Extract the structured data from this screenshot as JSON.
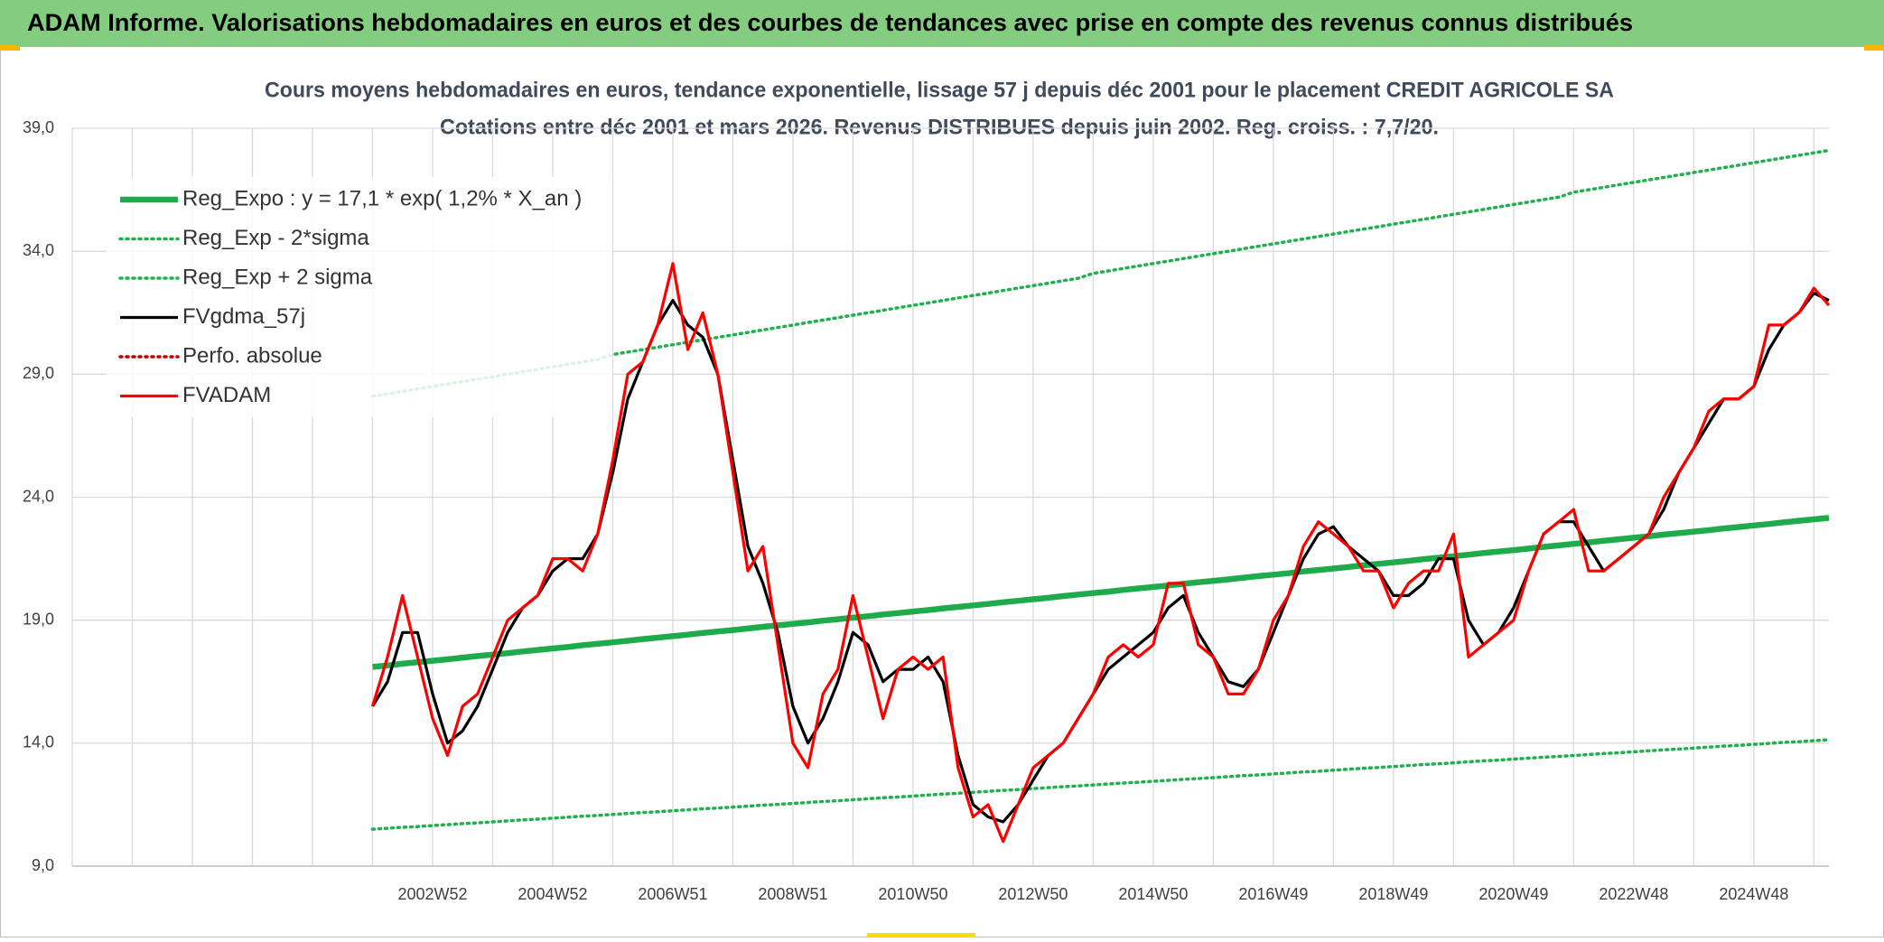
{
  "header": {
    "title": "ADAM Informe. Valorisations hebdomadaires en euros et des courbes de tendances avec prise en compte des revenus connus distribués"
  },
  "chart_data": {
    "type": "line",
    "title": "Cours moyens hebdomadaires en euros, tendance exponentielle, lissage 57 j depuis déc 2001 pour le placement CREDIT AGRICOLE SA",
    "subtitle": "Cotations entre déc 2001 et mars 2026. Revenus DISTRIBUES depuis juin 2002. Reg. croiss. : 7,7/20.",
    "categories": [
      null,
      null,
      null,
      null,
      null,
      null,
      null,
      null,
      null,
      null,
      null,
      null,
      null,
      null,
      null,
      null,
      null,
      null,
      null,
      null,
      null,
      null,
      null,
      null,
      "2002W52",
      null,
      null,
      null,
      null,
      null,
      null,
      null,
      "2004W52",
      null,
      null,
      null,
      null,
      null,
      null,
      null,
      "2006W51",
      null,
      null,
      null,
      null,
      null,
      null,
      null,
      "2008W51",
      null,
      null,
      null,
      null,
      null,
      null,
      null,
      "2010W50",
      null,
      null,
      null,
      null,
      null,
      null,
      null,
      "2012W50",
      null,
      null,
      null,
      null,
      null,
      null,
      null,
      "2014W50",
      null,
      null,
      null,
      null,
      null,
      null,
      null,
      "2016W49",
      null,
      null,
      null,
      null,
      null,
      null,
      null,
      "2018W49",
      null,
      null,
      null,
      null,
      null,
      null,
      null,
      "2020W49",
      null,
      null,
      null,
      null,
      null,
      null,
      null,
      "2022W48",
      null,
      null,
      null,
      null,
      null,
      null,
      null,
      "2024W48",
      null,
      null,
      null,
      null,
      null
    ],
    "ylim": [
      9,
      39
    ],
    "yticks": [
      {
        "value": 9,
        "label": "9,0"
      },
      {
        "value": 14,
        "label": "14,0"
      },
      {
        "value": 19,
        "label": "19,0"
      },
      {
        "value": 24,
        "label": "24,0"
      },
      {
        "value": 29,
        "label": "29,0"
      },
      {
        "value": 34,
        "label": "34,0"
      },
      {
        "value": 39,
        "label": "39,0"
      }
    ],
    "grid": true,
    "legend": "upper left",
    "series": [
      {
        "name": "Reg_Expo : y = 17,1 * exp( 1,2% *  X_an )",
        "color": "#1faa4b",
        "style": "thick",
        "values": [
          null,
          null,
          null,
          null,
          null,
          null,
          null,
          null,
          null,
          null,
          null,
          null,
          null,
          null,
          null,
          null,
          null,
          null,
          null,
          null,
          17.1,
          17.16,
          17.23,
          17.29,
          17.35,
          17.41,
          17.48,
          17.54,
          17.6,
          17.66,
          17.73,
          17.79,
          17.85,
          17.91,
          17.98,
          18.04,
          18.1,
          18.16,
          18.23,
          18.29,
          18.35,
          18.41,
          18.48,
          18.54,
          18.6,
          18.66,
          18.73,
          18.79,
          18.85,
          18.91,
          18.98,
          19.04,
          19.1,
          19.16,
          19.23,
          19.29,
          19.35,
          19.41,
          19.48,
          19.54,
          19.6,
          19.66,
          19.73,
          19.79,
          19.85,
          19.91,
          19.98,
          20.04,
          20.1,
          20.16,
          20.23,
          20.29,
          20.35,
          20.41,
          20.48,
          20.54,
          20.6,
          20.66,
          20.73,
          20.79,
          20.85,
          20.91,
          20.98,
          21.04,
          21.1,
          21.16,
          21.23,
          21.29,
          21.35,
          21.41,
          21.48,
          21.54,
          21.6,
          21.66,
          21.73,
          21.79,
          21.85,
          21.91,
          21.98,
          22.04,
          22.1,
          22.16,
          22.23,
          22.29,
          22.35,
          22.41,
          22.48,
          22.54,
          22.6,
          22.66,
          22.73,
          22.79,
          22.85,
          22.91,
          22.98,
          23.04,
          23.1,
          23.16
        ]
      },
      {
        "name": "Reg_Exp - 2*sigma",
        "color": "#22b04e",
        "style": "dotted",
        "values": [
          null,
          null,
          null,
          null,
          null,
          null,
          null,
          null,
          null,
          null,
          null,
          null,
          null,
          null,
          null,
          null,
          null,
          null,
          null,
          null,
          10.5,
          10.54,
          10.58,
          10.61,
          10.65,
          10.69,
          10.73,
          10.76,
          10.8,
          10.84,
          10.88,
          10.91,
          10.95,
          10.99,
          11.03,
          11.06,
          11.1,
          11.14,
          11.18,
          11.21,
          11.25,
          11.29,
          11.33,
          11.36,
          11.4,
          11.44,
          11.48,
          11.51,
          11.55,
          11.59,
          11.63,
          11.66,
          11.7,
          11.74,
          11.78,
          11.81,
          11.85,
          11.89,
          11.93,
          11.96,
          12.0,
          12.04,
          12.08,
          12.11,
          12.15,
          12.19,
          12.23,
          12.26,
          12.3,
          12.34,
          12.38,
          12.41,
          12.45,
          12.49,
          12.53,
          12.56,
          12.6,
          12.64,
          12.68,
          12.71,
          12.75,
          12.79,
          12.83,
          12.86,
          12.9,
          12.94,
          12.98,
          13.01,
          13.05,
          13.09,
          13.13,
          13.16,
          13.2,
          13.24,
          13.28,
          13.31,
          13.35,
          13.39,
          13.43,
          13.46,
          13.5,
          13.54,
          13.58,
          13.61,
          13.65,
          13.69,
          13.73,
          13.76,
          13.8,
          13.84,
          13.88,
          13.91,
          13.95,
          13.99,
          14.03,
          14.06,
          14.1,
          14.14
        ]
      },
      {
        "name": "Reg_Exp + 2 sigma",
        "color": "#22b04e",
        "style": "dotted",
        "values": [
          null,
          null,
          null,
          null,
          null,
          null,
          null,
          null,
          null,
          null,
          null,
          null,
          null,
          null,
          null,
          null,
          null,
          null,
          null,
          null,
          28.1,
          28.2,
          28.3,
          28.4,
          28.5,
          28.6,
          28.7,
          28.8,
          28.9,
          29.0,
          29.1,
          29.2,
          29.3,
          29.4,
          29.5,
          29.6,
          29.8,
          29.9,
          30.0,
          30.1,
          30.2,
          30.3,
          30.4,
          30.5,
          30.6,
          30.7,
          30.8,
          30.9,
          31.0,
          31.1,
          31.2,
          31.3,
          31.4,
          31.5,
          31.6,
          31.7,
          31.8,
          31.9,
          32.0,
          32.1,
          32.2,
          32.3,
          32.4,
          32.5,
          32.6,
          32.7,
          32.8,
          32.9,
          33.1,
          33.2,
          33.3,
          33.4,
          33.5,
          33.6,
          33.7,
          33.8,
          33.9,
          34.0,
          34.1,
          34.2,
          34.3,
          34.4,
          34.5,
          34.6,
          34.7,
          34.8,
          34.9,
          35.0,
          35.1,
          35.2,
          35.3,
          35.4,
          35.5,
          35.6,
          35.7,
          35.8,
          35.9,
          36.0,
          36.1,
          36.2,
          36.4,
          36.5,
          36.6,
          36.7,
          36.8,
          36.9,
          37.0,
          37.1,
          37.2,
          37.3,
          37.4,
          37.5,
          37.6,
          37.7,
          37.8,
          37.9,
          38.0,
          38.1
        ]
      },
      {
        "name": "FVgdma_57j",
        "color": "#000000",
        "style": "solid",
        "values": [
          null,
          null,
          null,
          null,
          null,
          null,
          null,
          null,
          null,
          null,
          null,
          null,
          null,
          null,
          null,
          null,
          null,
          null,
          null,
          null,
          15.5,
          16.5,
          18.5,
          18.5,
          16.0,
          14.0,
          14.5,
          15.5,
          17.0,
          18.5,
          19.5,
          20.0,
          21.0,
          21.5,
          21.5,
          22.5,
          25.0,
          28.0,
          29.5,
          31.0,
          32.0,
          31.0,
          30.5,
          29.0,
          25.5,
          22.0,
          20.5,
          18.5,
          15.5,
          14.0,
          15.0,
          16.5,
          18.5,
          18.0,
          16.5,
          17.0,
          17.0,
          17.5,
          16.5,
          13.5,
          11.5,
          11.0,
          10.8,
          11.5,
          12.5,
          13.5,
          14.0,
          15.0,
          16.0,
          17.0,
          17.5,
          18.0,
          18.5,
          19.5,
          20.0,
          18.5,
          17.5,
          16.5,
          16.3,
          17.0,
          18.5,
          20.0,
          21.5,
          22.5,
          22.8,
          22.0,
          21.5,
          21.0,
          20.0,
          20.0,
          20.5,
          21.5,
          21.5,
          19.0,
          18.0,
          18.5,
          19.5,
          21.0,
          22.5,
          23.0,
          23.0,
          22.0,
          21.0,
          21.5,
          22.0,
          22.5,
          23.5,
          25.0,
          26.0,
          27.0,
          28.0,
          28.0,
          28.5,
          30.0,
          31.0,
          31.5,
          32.3,
          32.0
        ]
      },
      {
        "name": "Perfo. absolue",
        "color": "#c00000",
        "style": "dotted",
        "values": [
          null,
          null,
          null,
          null,
          null,
          null,
          null,
          null,
          null,
          null,
          null,
          null,
          null,
          null,
          null,
          null,
          null,
          null,
          null,
          null,
          null,
          null,
          null,
          null,
          null,
          null,
          null,
          null,
          null,
          null,
          null,
          null,
          null,
          null,
          null,
          null,
          null,
          null,
          null,
          null,
          null,
          null,
          null,
          null,
          null,
          null,
          null,
          null,
          null,
          null,
          null,
          null,
          null,
          null,
          null,
          null,
          null,
          null,
          null,
          null,
          null,
          null,
          null,
          null,
          null,
          null,
          null,
          null,
          null,
          null,
          null,
          null,
          null,
          null,
          null,
          null,
          null,
          null,
          null,
          null,
          null,
          null,
          null,
          null,
          null,
          null,
          null,
          null,
          null,
          null,
          null,
          null,
          null,
          null,
          null,
          null,
          null,
          null,
          null,
          null,
          null,
          null,
          null,
          null,
          null,
          null,
          null,
          null,
          null,
          null,
          null,
          null,
          null,
          null,
          null,
          null,
          null,
          null
        ]
      },
      {
        "name": "FVADAM",
        "color": "#ff0000",
        "style": "solid",
        "values": [
          null,
          null,
          null,
          null,
          null,
          null,
          null,
          null,
          null,
          null,
          null,
          null,
          null,
          null,
          null,
          null,
          null,
          null,
          null,
          null,
          15.5,
          17.5,
          20.0,
          17.5,
          15.0,
          13.5,
          15.5,
          16.0,
          17.5,
          19.0,
          19.5,
          20.0,
          21.5,
          21.5,
          21.0,
          22.5,
          25.5,
          29.0,
          29.5,
          31.0,
          33.5,
          30.0,
          31.5,
          29.0,
          25.0,
          21.0,
          22.0,
          18.0,
          14.0,
          13.0,
          16.0,
          17.0,
          20.0,
          17.5,
          15.0,
          17.0,
          17.5,
          17.0,
          17.5,
          13.0,
          11.0,
          11.5,
          10.0,
          11.5,
          13.0,
          13.5,
          14.0,
          15.0,
          16.0,
          17.5,
          18.0,
          17.5,
          18.0,
          20.5,
          20.5,
          18.0,
          17.5,
          16.0,
          16.0,
          17.0,
          19.0,
          20.0,
          22.0,
          23.0,
          22.5,
          22.0,
          21.0,
          21.0,
          19.5,
          20.5,
          21.0,
          21.0,
          22.5,
          17.5,
          18.0,
          18.5,
          19.0,
          21.0,
          22.5,
          23.0,
          23.5,
          21.0,
          21.0,
          21.5,
          22.0,
          22.5,
          24.0,
          25.0,
          26.0,
          27.5,
          28.0,
          28.0,
          28.5,
          31.0,
          31.0,
          31.5,
          32.5,
          31.8
        ]
      }
    ]
  }
}
